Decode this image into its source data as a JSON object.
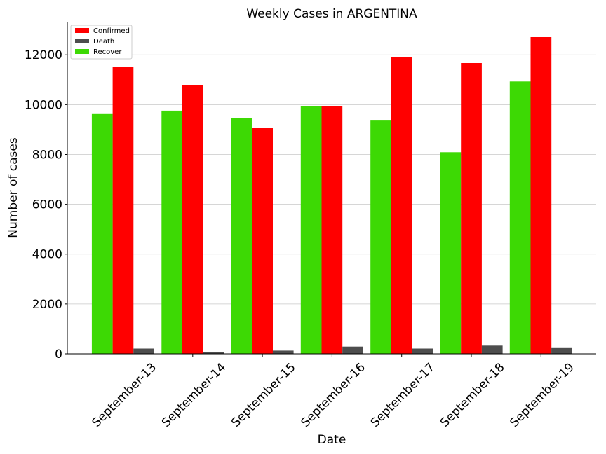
{
  "chart_data": {
    "type": "bar",
    "title": "Weekly Cases in ARGENTINA",
    "xlabel": "Date",
    "ylabel": "Number of cases",
    "ylim": [
      0,
      13300
    ],
    "yticks": [
      0,
      2000,
      4000,
      6000,
      8000,
      10000,
      12000
    ],
    "grid": "horizontal",
    "legend_position": "top-left",
    "categories": [
      "September-13",
      "September-14",
      "September-15",
      "September-16",
      "September-17",
      "September-18",
      "September-19"
    ],
    "series": [
      {
        "name": "Confirmed",
        "color": "#ff0000",
        "values": [
          11500,
          10770,
          9060,
          9930,
          11910,
          11670,
          12710
        ]
      },
      {
        "name": "Death",
        "color": "#4d4d4d",
        "values": [
          210,
          80,
          130,
          290,
          210,
          330,
          260
        ]
      },
      {
        "name": "Recover",
        "color": "#3dd904",
        "values": [
          9650,
          9760,
          9450,
          9930,
          9390,
          8090,
          10930
        ]
      }
    ],
    "draw_order": [
      "Recover",
      "Confirmed",
      "Death"
    ]
  }
}
